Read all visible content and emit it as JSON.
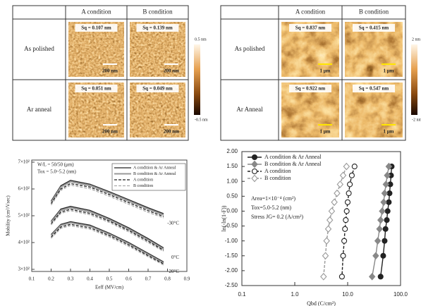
{
  "afm_left": {
    "columns": [
      "A condition",
      "B condition"
    ],
    "rows": [
      "As polished",
      "Ar anneal"
    ],
    "sq": [
      [
        "Sq = 0.107 nm",
        "Sq = 0.139 nm"
      ],
      [
        "Sq = 0.051 nm",
        "Sq = 0.049 nm"
      ]
    ],
    "scale_bar": "200 nm",
    "colorbar": [
      "0.5 nm",
      "-0.5 nm"
    ]
  },
  "afm_right": {
    "columns": [
      "A condition",
      "B condition"
    ],
    "rows": [
      "As polished",
      "Ar Anneal"
    ],
    "sq": [
      [
        "Sq = 0.837 nm",
        "Sq = 0.415 nm"
      ],
      [
        "Sq = 0.922 nm",
        "Sq = 0.547 nm"
      ]
    ],
    "scale_bar": "1 μm",
    "colorbar": [
      "2 nm",
      "-2 nm"
    ]
  },
  "chart_data": [
    {
      "type": "line",
      "xlabel": "Eeff (MV/cm)",
      "ylabel": "Mobility (cm²/Vsec)",
      "x": [
        0.2,
        0.25,
        0.3,
        0.4,
        0.5,
        0.6,
        0.7,
        0.78
      ],
      "xlim": [
        0.1,
        0.9
      ],
      "xticks": [
        0.1,
        0.2,
        0.3,
        0.4,
        0.5,
        0.6,
        0.7,
        0.8,
        0.9
      ],
      "ylim": [
        300,
        700
      ],
      "yticks": [
        {
          "value": 300,
          "label": "3×10²"
        },
        {
          "value": 400,
          "label": "4×10²"
        },
        {
          "value": 500,
          "label": "5×10²"
        },
        {
          "value": 600,
          "label": "6×10²"
        },
        {
          "value": 700,
          "label": "7×10²"
        }
      ],
      "annotations": [
        "W/L = 50/50 (μm)",
        "Tox = 5.0~5.2 (nm)"
      ],
      "curve_labels": [
        "-30°C",
        "0°C",
        "20°C"
      ],
      "legend": "upper right",
      "series": [
        {
          "name": "A condition & Ar Anneal",
          "color": "#222222",
          "dash": "solid",
          "values": [
            [
              555,
              612,
              632,
              618,
              590,
              560,
              530,
              508
            ],
            [
              480,
              525,
              535,
              520,
              490,
              455,
              415,
              380
            ],
            [
              430,
              468,
              478,
              465,
              435,
              400,
              360,
              328
            ]
          ]
        },
        {
          "name": "B condition & Ar Anneal",
          "color": "#999999",
          "dash": "solid",
          "values": [
            [
              550,
              607,
              627,
              613,
              585,
              555,
              525,
              503
            ],
            [
              476,
              520,
              530,
              515,
              485,
              450,
              410,
              376
            ],
            [
              426,
              464,
              474,
              461,
              431,
              396,
              356,
              324
            ]
          ]
        },
        {
          "name": "A condition",
          "color": "#222222",
          "dash": "dashed",
          "values": [
            [
              545,
              600,
              620,
              607,
              579,
              549,
              519,
              497
            ],
            [
              470,
              514,
              524,
              509,
              480,
              445,
              405,
              371
            ],
            [
              420,
              458,
              468,
              455,
              426,
              391,
              351,
              320
            ]
          ]
        },
        {
          "name": "B condition",
          "color": "#aaaaaa",
          "dash": "dashed",
          "values": [
            [
              540,
              595,
              614,
              601,
              573,
              543,
              513,
              492
            ],
            [
              466,
              509,
              519,
              504,
              475,
              440,
              400,
              367
            ],
            [
              416,
              453,
              463,
              450,
              421,
              386,
              347,
              316
            ]
          ]
        }
      ]
    },
    {
      "type": "scatter-line",
      "xlabel": "Qbd (C/cm²)",
      "ylabel": "ln(-ln(1-F))",
      "xscale": "log",
      "xlim": [
        0.1,
        100
      ],
      "xticks": [
        0.1,
        {
          "value": 1,
          "label": "1.0"
        },
        {
          "value": 10,
          "label": "10.0"
        },
        {
          "value": 100,
          "label": "100.0"
        }
      ],
      "ylim": [
        -2.5,
        2
      ],
      "yticks": [
        {
          "value": 2,
          "label": "2.00"
        },
        {
          "value": 1.5,
          "label": "1.50"
        },
        {
          "value": 1,
          "label": "1.00"
        },
        {
          "value": 0.5,
          "label": "0.50"
        },
        {
          "value": 0,
          "label": "0.00"
        },
        {
          "value": -0.5,
          "label": "-0.50"
        },
        {
          "value": -1,
          "label": "-1.00"
        },
        {
          "value": -1.5,
          "label": "-1.50"
        },
        {
          "value": -2,
          "label": "-2.00"
        },
        {
          "value": -2.5,
          "label": "-2.50"
        }
      ],
      "annotations": [
        "Area=1×10⁻⁴ (cm²)",
        "Tox=5.0-5.2 (nm)",
        "Stress JG= 0.2 (A/cm²)"
      ],
      "legend": "upper left",
      "series": [
        {
          "name": "A condition & Ar Anneal",
          "color": "#222222",
          "marker": "circle",
          "filled": true,
          "dash": "solid",
          "x": [
            68,
            66,
            64,
            62,
            60,
            57,
            55,
            52,
            50,
            47,
            42
          ],
          "values": [
            1.5,
            1.2,
            0.9,
            0.6,
            0.3,
            0,
            -0.3,
            -0.6,
            -1,
            -1.5,
            -2.2
          ]
        },
        {
          "name": "B condition & Ar Anneal",
          "color": "#888888",
          "marker": "diamond",
          "filled": true,
          "dash": "solid",
          "x": [
            60,
            56,
            53,
            50,
            48,
            45,
            42,
            40,
            37,
            34,
            29
          ],
          "values": [
            1.5,
            1.2,
            0.9,
            0.6,
            0.3,
            0,
            -0.3,
            -0.6,
            -1,
            -1.5,
            -2.2
          ]
        },
        {
          "name": "A condition",
          "color": "#222222",
          "marker": "circle",
          "filled": false,
          "dash": "dashed",
          "x": [
            13.5,
            12,
            11,
            10.5,
            10,
            9.6,
            9.2,
            8.9,
            8.6,
            8.2,
            7.8
          ],
          "values": [
            1.5,
            1.2,
            0.9,
            0.6,
            0.3,
            0,
            -0.3,
            -0.6,
            -1,
            -1.5,
            -2.2
          ]
        },
        {
          "name": "B condition",
          "color": "#999999",
          "marker": "diamond",
          "filled": false,
          "dash": "dashed",
          "x": [
            9.5,
            8.2,
            7.2,
            6.3,
            5.6,
            5,
            4.6,
            4.3,
            4,
            3.8,
            3.5
          ],
          "values": [
            1.5,
            1.2,
            0.9,
            0.6,
            0.3,
            0,
            -0.3,
            -0.6,
            -1,
            -1.5,
            -2.2
          ]
        }
      ]
    }
  ]
}
